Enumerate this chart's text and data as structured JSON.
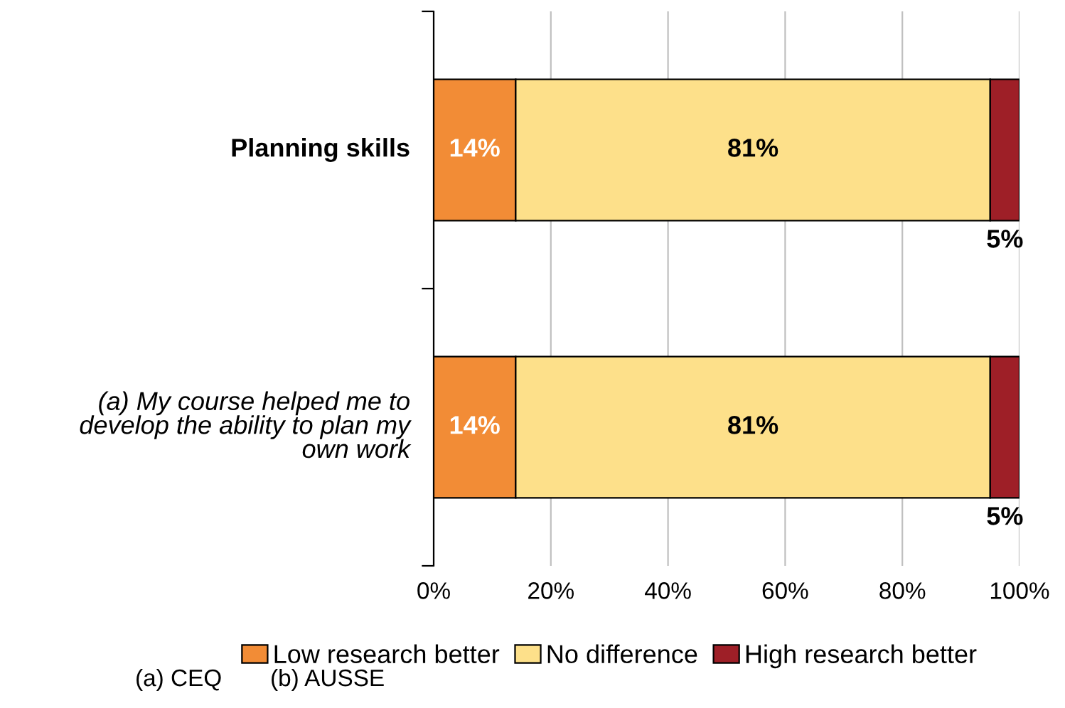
{
  "chart_data": {
    "type": "bar",
    "orientation": "horizontal",
    "stacked": true,
    "categories": [
      "Planning skills",
      "(a) My course helped me to\ndevelop the ability to plan my\nown work"
    ],
    "series": [
      {
        "name": "Low research better",
        "color": "#f28c36",
        "values": [
          14,
          14
        ],
        "value_labels": [
          "14%",
          "14%"
        ]
      },
      {
        "name": "No difference",
        "color": "#fde08a",
        "values": [
          81,
          81
        ],
        "value_labels": [
          "81%",
          "81%"
        ]
      },
      {
        "name": "High research better",
        "color": "#9e1f27",
        "values": [
          5,
          5
        ],
        "value_labels": [
          "5%",
          "5%"
        ]
      }
    ],
    "xlim": [
      0,
      100
    ],
    "xticks": [
      {
        "value": 0,
        "label": "0%"
      },
      {
        "value": 20,
        "label": "20%"
      },
      {
        "value": 40,
        "label": "40%"
      },
      {
        "value": 60,
        "label": "60%"
      },
      {
        "value": 80,
        "label": "80%"
      },
      {
        "value": 100,
        "label": "100%"
      }
    ],
    "grid": "x",
    "legend": "bottom",
    "annotations": [
      "(a) CEQ",
      "(b) AUSSE"
    ]
  }
}
